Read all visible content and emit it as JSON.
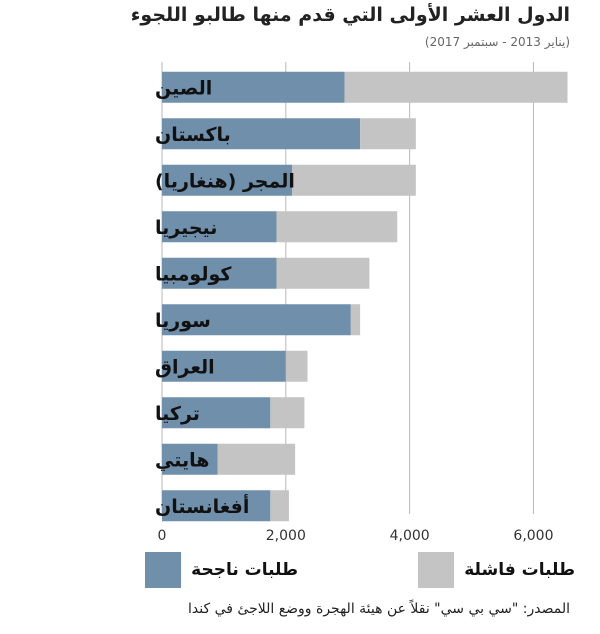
{
  "header": {
    "title": "الدول العشر الأولى التي قدم منها طالبو اللجوء",
    "subtitle": "(يناير 2013 - سبتمبر 2017)"
  },
  "legend": {
    "success_label": "طلبات ناجحة",
    "failed_label": "طلبات فاشلة"
  },
  "source": "المصدر: \"سي بي سي\" نقلاً عن هيئة الهجرة ووضع اللاجئ في كندا",
  "colors": {
    "success": "#6f8fab",
    "failed": "#c4c4c4",
    "grid": "#b8b8b8"
  },
  "chart_data": {
    "type": "bar",
    "orientation": "horizontal",
    "stacked": true,
    "categories": [
      "الصين",
      "باكستان",
      "المجر (هنغاريا)",
      "نيجيريا",
      "كولومبيا",
      "سوريا",
      "العراق",
      "تركيا",
      "هايتي",
      "أفغانستان"
    ],
    "series": [
      {
        "name": "طلبات ناجحة",
        "color": "#6f8fab",
        "values": [
          2950,
          3200,
          2100,
          1850,
          1850,
          3050,
          2000,
          1750,
          900,
          1750
        ]
      },
      {
        "name": "طلبات فاشلة",
        "color": "#c4c4c4",
        "values": [
          3600,
          900,
          2000,
          1950,
          1500,
          150,
          350,
          550,
          1250,
          300
        ]
      }
    ],
    "xlim": [
      0,
      6800
    ],
    "xticks": [
      0,
      2000,
      4000,
      6000
    ],
    "xtick_labels": [
      "0",
      "2,000",
      "4,000",
      "6,000"
    ],
    "grid": true,
    "legend_position": "bottom"
  }
}
